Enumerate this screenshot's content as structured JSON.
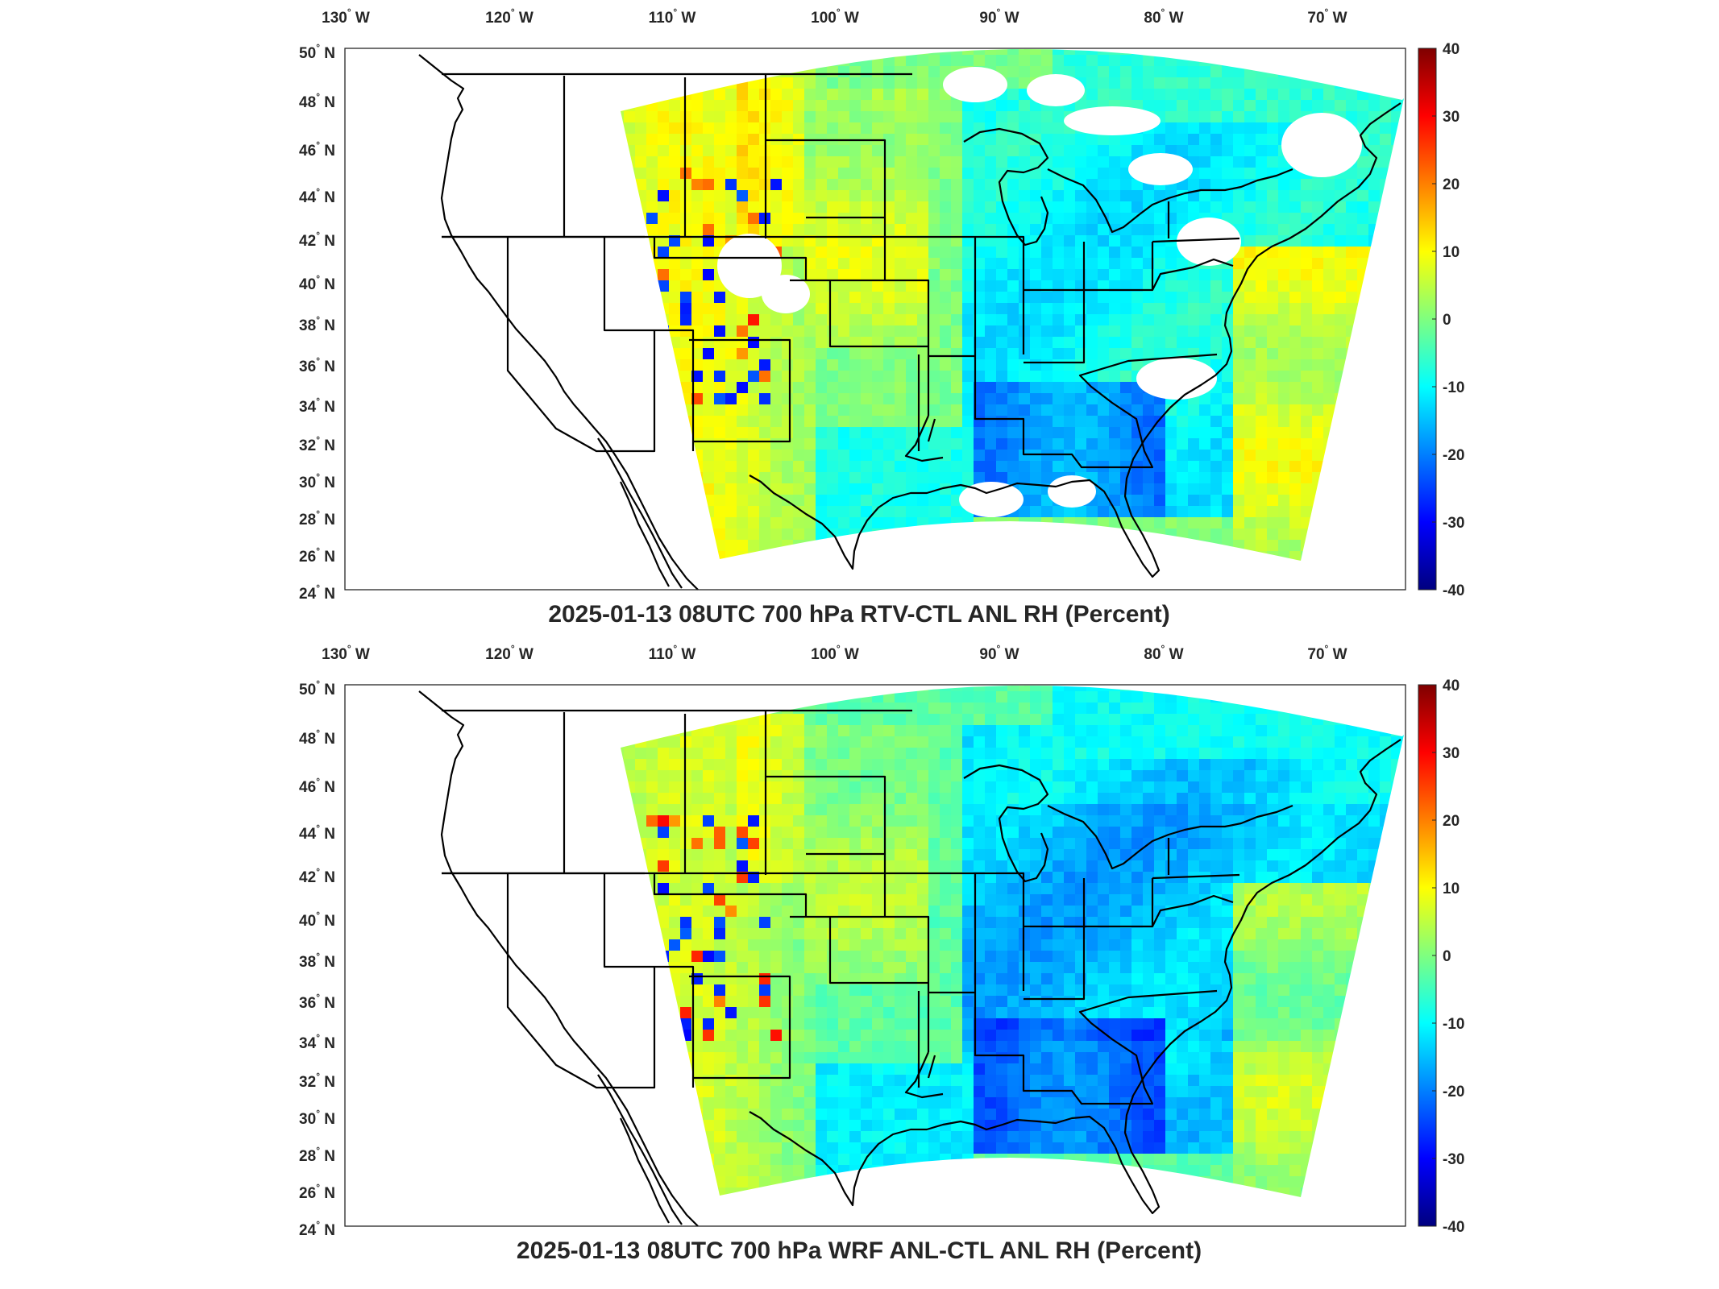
{
  "figure": {
    "panels": [
      {
        "title": "2025-01-13 08UTC 700 hPa RTV-CTL ANL RH (Percent)",
        "variant": "rtv",
        "colorbar_range": [
          -40,
          40
        ],
        "colorbar_ticks": [
          "40",
          "30",
          "20",
          "10",
          "0",
          "-10",
          "-20",
          "-30",
          "-40"
        ],
        "lon_ticks": [
          "130",
          "120",
          "110",
          "100",
          "90",
          "80",
          "70"
        ],
        "lon_suffix": "W",
        "lat_ticks": [
          "50",
          "48",
          "46",
          "44",
          "42",
          "40",
          "38",
          "36",
          "34",
          "32",
          "30",
          "28",
          "26",
          "24"
        ],
        "lat_suffix": "N"
      },
      {
        "title": "2025-01-13 08UTC 700 hPa WRF ANL-CTL ANL RH (Percent)",
        "variant": "wrf",
        "colorbar_range": [
          -40,
          40
        ],
        "colorbar_ticks": [
          "40",
          "30",
          "20",
          "10",
          "0",
          "-10",
          "-20",
          "-30",
          "-40"
        ],
        "lon_ticks": [
          "130",
          "120",
          "110",
          "100",
          "90",
          "80",
          "70"
        ],
        "lon_suffix": "W",
        "lat_ticks": [
          "50",
          "48",
          "46",
          "44",
          "42",
          "40",
          "38",
          "36",
          "34",
          "32",
          "30",
          "28",
          "26",
          "24"
        ],
        "lat_suffix": "N"
      }
    ],
    "colormap": "jet",
    "colormap_colors": [
      "#00007f",
      "#0000ff",
      "#007fff",
      "#00ffff",
      "#7fff7f",
      "#ffff00",
      "#ff7f00",
      "#ff0000",
      "#7f0000"
    ],
    "missing_color": "#ffffff",
    "boundary_color": "#000000"
  }
}
